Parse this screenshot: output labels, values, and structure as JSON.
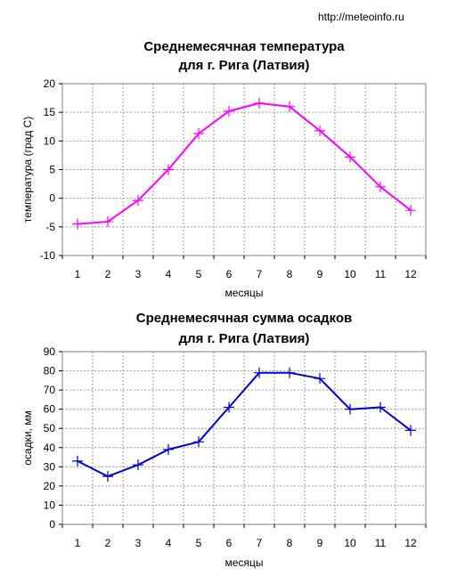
{
  "source": "http://meteoinfo.ru",
  "chart_data": [
    {
      "type": "line",
      "title": "Среднемесячная температура",
      "subtitle": "для г. Рига (Латвия)",
      "xlabel": "месяцы",
      "ylabel": "температура (град С)",
      "categories": [
        "1",
        "2",
        "3",
        "4",
        "5",
        "6",
        "7",
        "8",
        "9",
        "10",
        "11",
        "12"
      ],
      "series": [
        {
          "values": [
            -4.5,
            -4.1,
            -0.4,
            5.0,
            11.3,
            15.2,
            16.6,
            16.0,
            11.8,
            7.2,
            2.0,
            -2.1
          ],
          "color": "#ff00ff",
          "marker": "plus"
        }
      ],
      "ylim": [
        -10,
        20
      ],
      "yticks": [
        -10,
        -5,
        0,
        5,
        10,
        15,
        20
      ],
      "grid": true,
      "legend": "none"
    },
    {
      "type": "line",
      "title": "Среднемесячная сумма осадков",
      "subtitle": "для г. Рига (Латвия)",
      "xlabel": "месяцы",
      "ylabel": "осадки, мм",
      "categories": [
        "1",
        "2",
        "3",
        "4",
        "5",
        "6",
        "7",
        "8",
        "9",
        "10",
        "11",
        "12"
      ],
      "series": [
        {
          "values": [
            33,
            25,
            31,
            39,
            43,
            61,
            79,
            79,
            76,
            60,
            61,
            49
          ],
          "color": "#0000cc",
          "marker": "plus"
        }
      ],
      "ylim": [
        0,
        90
      ],
      "yticks": [
        0,
        10,
        20,
        30,
        40,
        50,
        60,
        70,
        80,
        90
      ],
      "grid": true,
      "legend": "none"
    }
  ]
}
